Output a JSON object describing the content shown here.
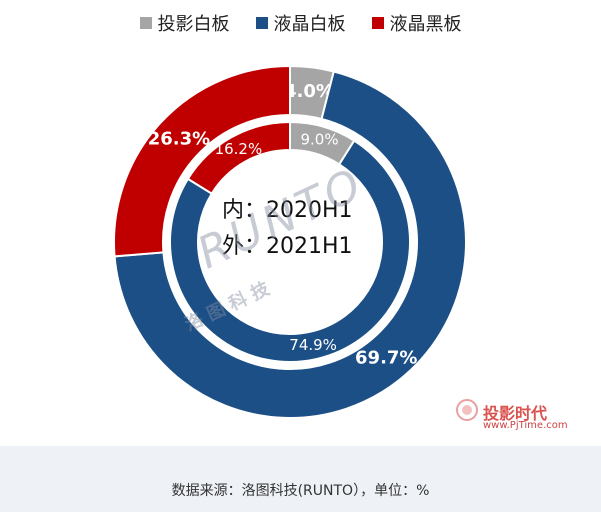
{
  "legend": [
    {
      "label": "投影白板",
      "color": "#a5a5a5"
    },
    {
      "label": "液晶白板",
      "color": "#1b4f86"
    },
    {
      "label": "液晶黑板",
      "color": "#c00000"
    }
  ],
  "center": {
    "line1": "内：2020H1",
    "line2": "外：2021H1"
  },
  "watermark": {
    "main": "RUNTO",
    "sub": "洛 图 科 技"
  },
  "logo": {
    "name": "投影时代",
    "url": "www.PjTime.com"
  },
  "source_text": "数据来源：洛图科技(RUNTO），单位：%",
  "chart_data": {
    "type": "donut",
    "categories": [
      "投影白板",
      "液晶白板",
      "液晶黑板"
    ],
    "colors": [
      "#a5a5a5",
      "#1b4f86",
      "#c00000"
    ],
    "series": [
      {
        "name": "2020H1",
        "ring": "inner",
        "values": [
          9.0,
          74.9,
          16.2
        ],
        "labels": [
          "9.0%",
          "74.9%",
          "16.2%"
        ]
      },
      {
        "name": "2021H1",
        "ring": "outer",
        "values": [
          4.0,
          69.7,
          26.3
        ],
        "labels": [
          "4.0%",
          "69.7%",
          "26.3%"
        ]
      }
    ]
  }
}
